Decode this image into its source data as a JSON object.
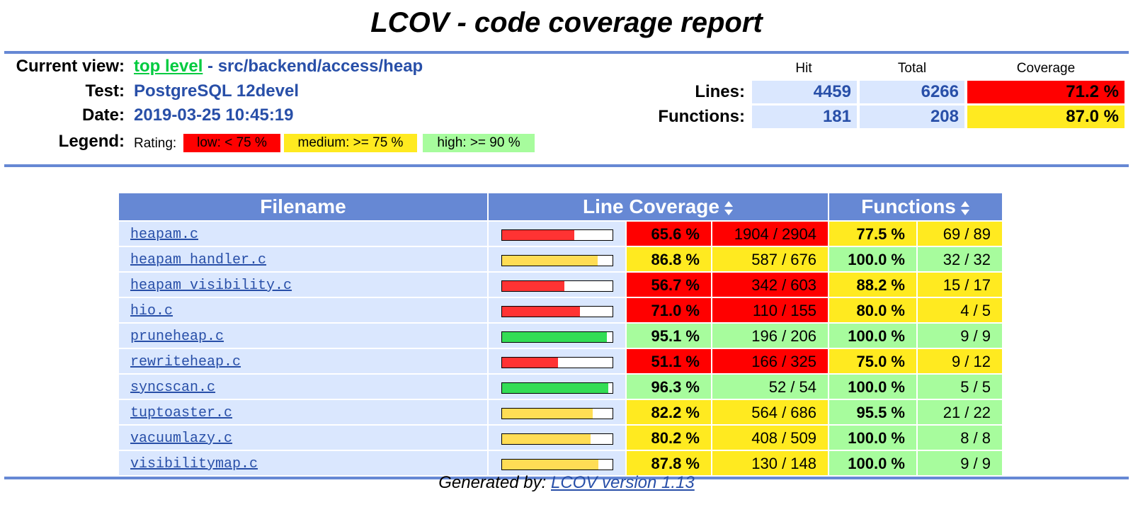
{
  "title": "LCOV - code coverage report",
  "header": {
    "current_view_label": "Current view:",
    "current_view_link": "top level",
    "current_view_sep": " - ",
    "current_view_path": "src/backend/access/heap",
    "test_label": "Test:",
    "test_value": "PostgreSQL 12devel",
    "date_label": "Date:",
    "date_value": "2019-03-25 10:45:19",
    "legend_label": "Legend:",
    "rating_label": "Rating:",
    "legend_low": "low: < 75 %",
    "legend_medium": "medium: >= 75 %",
    "legend_high": "high: >= 90 %"
  },
  "summary": {
    "col_hit": "Hit",
    "col_total": "Total",
    "col_coverage": "Coverage",
    "lines_label": "Lines:",
    "lines_hit": "4459",
    "lines_total": "6266",
    "lines_coverage": "71.2 %",
    "functions_label": "Functions:",
    "functions_hit": "181",
    "functions_total": "208",
    "functions_coverage": "87.0 %"
  },
  "table": {
    "col_filename": "Filename",
    "col_line_coverage": "Line Coverage",
    "col_functions": "Functions",
    "rows": [
      {
        "file": "heapam.c",
        "bar": 0.656,
        "line_pct": "65.6 %",
        "line_cnt": "1904 / 2904",
        "line_rating": "lo",
        "func_pct": "77.5 %",
        "func_cnt": "69 / 89",
        "func_rating": "me"
      },
      {
        "file": "heapam_handler.c",
        "bar": 0.868,
        "line_pct": "86.8 %",
        "line_cnt": "587 / 676",
        "line_rating": "me",
        "func_pct": "100.0 %",
        "func_cnt": "32 / 32",
        "func_rating": "hi"
      },
      {
        "file": "heapam_visibility.c",
        "bar": 0.567,
        "line_pct": "56.7 %",
        "line_cnt": "342 / 603",
        "line_rating": "lo",
        "func_pct": "88.2 %",
        "func_cnt": "15 / 17",
        "func_rating": "me"
      },
      {
        "file": "hio.c",
        "bar": 0.71,
        "line_pct": "71.0 %",
        "line_cnt": "110 / 155",
        "line_rating": "lo",
        "func_pct": "80.0 %",
        "func_cnt": "4 / 5",
        "func_rating": "me"
      },
      {
        "file": "pruneheap.c",
        "bar": 0.951,
        "line_pct": "95.1 %",
        "line_cnt": "196 / 206",
        "line_rating": "hi",
        "func_pct": "100.0 %",
        "func_cnt": "9 / 9",
        "func_rating": "hi"
      },
      {
        "file": "rewriteheap.c",
        "bar": 0.511,
        "line_pct": "51.1 %",
        "line_cnt": "166 / 325",
        "line_rating": "lo",
        "func_pct": "75.0 %",
        "func_cnt": "9 / 12",
        "func_rating": "me"
      },
      {
        "file": "syncscan.c",
        "bar": 0.963,
        "line_pct": "96.3 %",
        "line_cnt": "52 / 54",
        "line_rating": "hi",
        "func_pct": "100.0 %",
        "func_cnt": "5 / 5",
        "func_rating": "hi"
      },
      {
        "file": "tuptoaster.c",
        "bar": 0.822,
        "line_pct": "82.2 %",
        "line_cnt": "564 / 686",
        "line_rating": "me",
        "func_pct": "95.5 %",
        "func_cnt": "21 / 22",
        "func_rating": "hi"
      },
      {
        "file": "vacuumlazy.c",
        "bar": 0.802,
        "line_pct": "80.2 %",
        "line_cnt": "408 / 509",
        "line_rating": "me",
        "func_pct": "100.0 %",
        "func_cnt": "8 / 8",
        "func_rating": "hi"
      },
      {
        "file": "visibilitymap.c",
        "bar": 0.878,
        "line_pct": "87.8 %",
        "line_cnt": "130 / 148",
        "line_rating": "me",
        "func_pct": "100.0 %",
        "func_cnt": "9 / 9",
        "func_rating": "hi"
      }
    ]
  },
  "footer": {
    "generated_by": "Generated by: ",
    "link": "LCOV version 1.13"
  },
  "colors": {
    "rule": "#6688d4",
    "low": "#ff0000",
    "medium": "#ffea20",
    "high": "#a7fc9d",
    "link": "#284fa8",
    "toplink": "#00cb40"
  }
}
